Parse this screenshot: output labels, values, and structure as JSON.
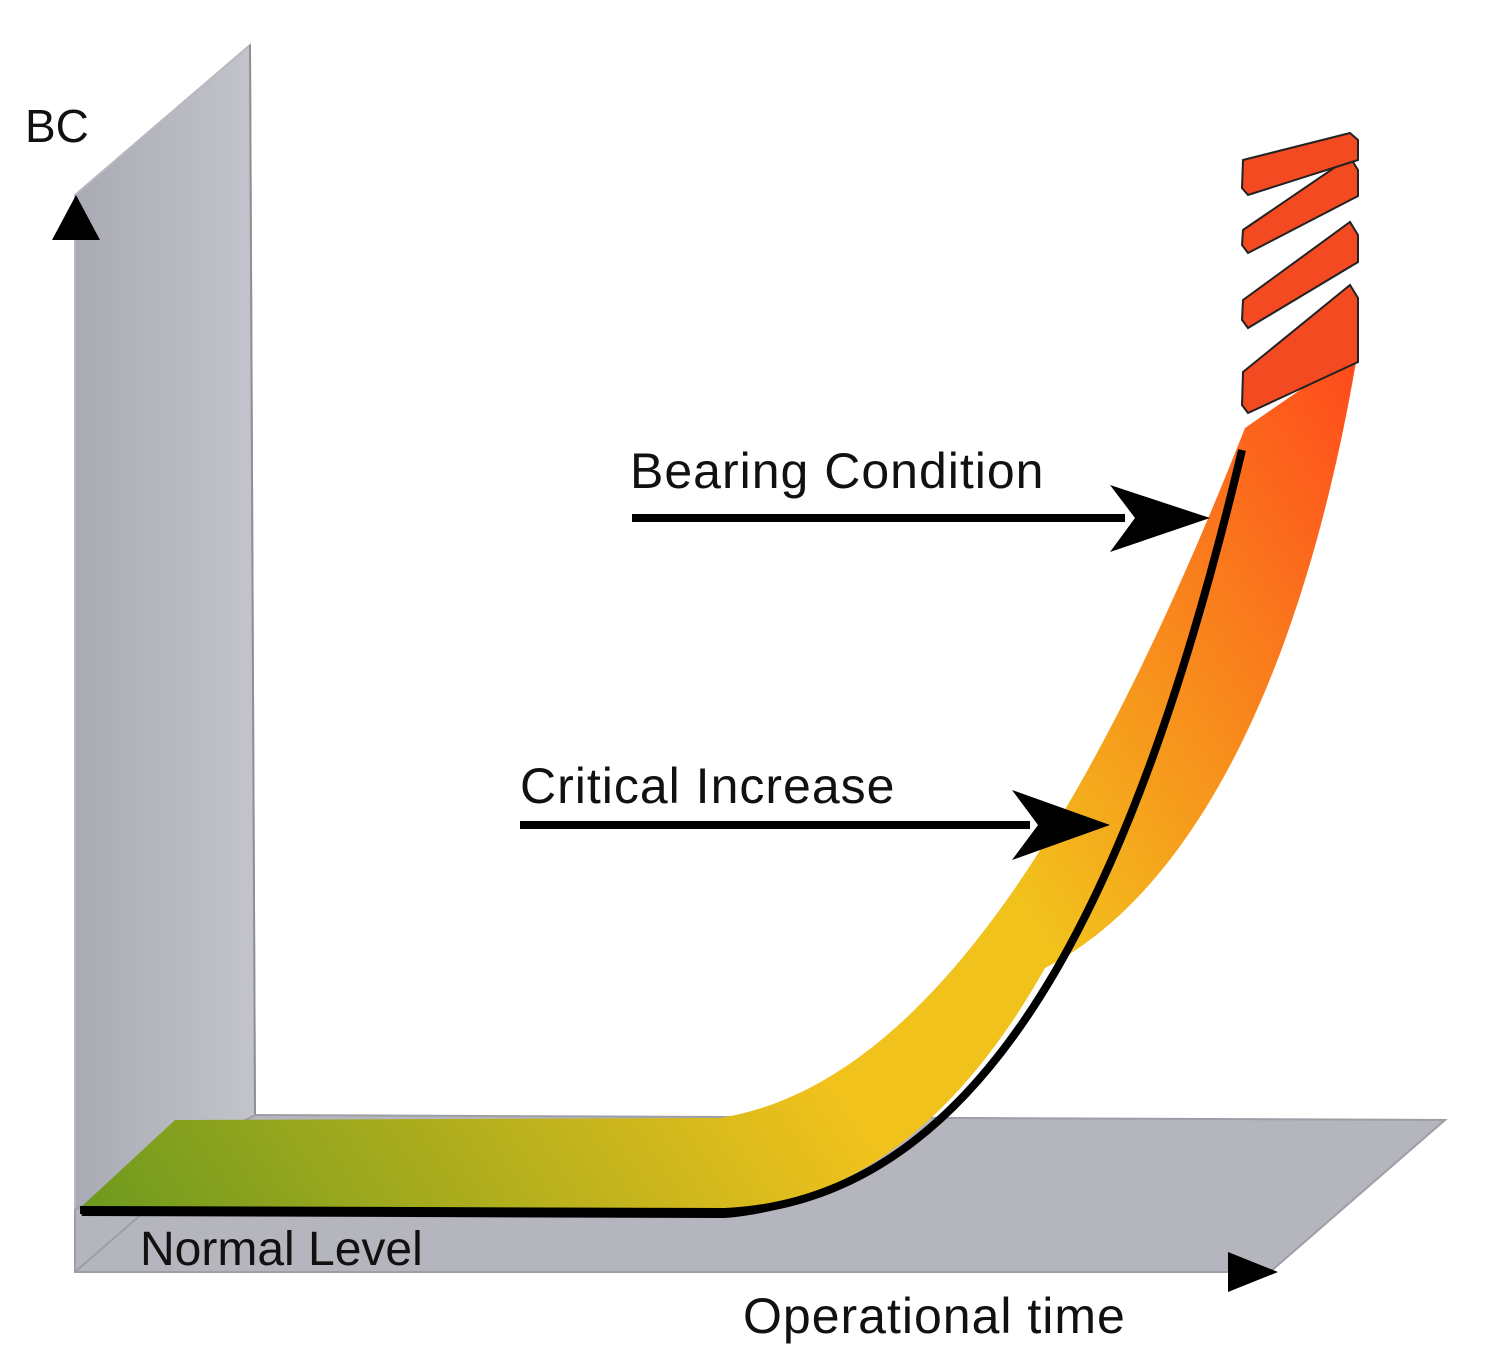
{
  "diagram": {
    "y_axis_label": "BC",
    "x_axis_label": "Operational time",
    "annotations": {
      "bearing_condition": "Bearing Condition",
      "critical_increase": "Critical Increase",
      "normal_level": "Normal Level"
    },
    "colors": {
      "wall": "#b7b8c0",
      "floor": "#b4b5bd",
      "band_start": "#6f9a1e",
      "band_mid": "#f2c21c",
      "band_end": "#ff4a1c",
      "band_edge": "#000000",
      "axis_arrow": "#000000"
    }
  }
}
